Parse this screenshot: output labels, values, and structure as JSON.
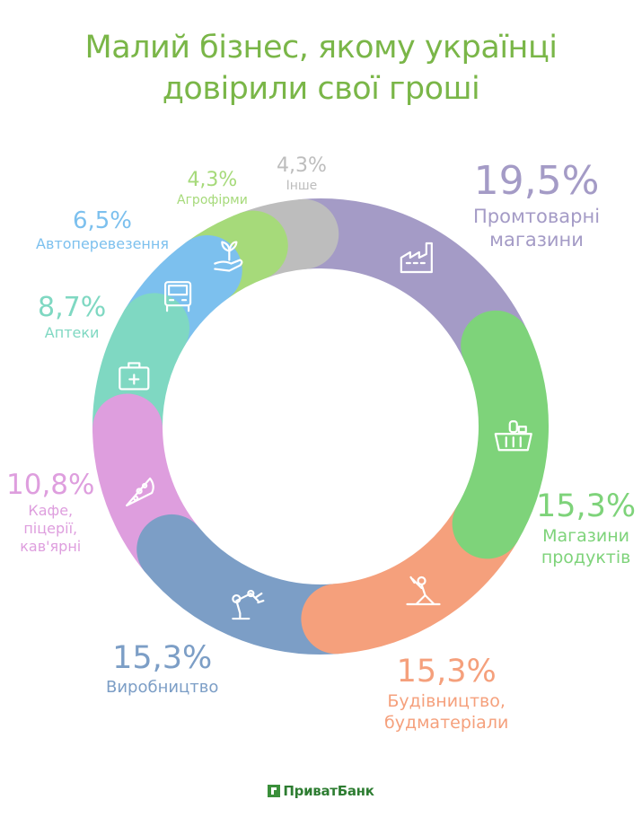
{
  "title": {
    "line1": "Малий бізнес, якому українці",
    "line2": "довірили свої гроші"
  },
  "logo_text": "ПриватБанк",
  "chart_data": {
    "type": "pie",
    "subtype": "donut",
    "unit": "%",
    "slices": [
      {
        "label": "Промтоварні магазини",
        "label_lines": [
          "Промтоварні",
          "магазини"
        ],
        "value": 19.5,
        "value_text": "19,5%",
        "color": "#a49bc6",
        "icon": "factory-icon"
      },
      {
        "label": "Магазини продуктів",
        "label_lines": [
          "Магазини",
          "продуктів"
        ],
        "value": 15.3,
        "value_text": "15,3%",
        "color": "#7ed37a",
        "icon": "grocery-basket-icon"
      },
      {
        "label": "Будівництво, будматеріали",
        "label_lines": [
          "Будівництво,",
          "будматеріали"
        ],
        "value": 15.3,
        "value_text": "15,3%",
        "color": "#f5a07c",
        "icon": "construction-worker-icon"
      },
      {
        "label": "Виробництво",
        "label_lines": [
          "Виробництво"
        ],
        "value": 15.3,
        "value_text": "15,3%",
        "color": "#7c9ec6",
        "icon": "robot-arm-icon"
      },
      {
        "label": "Кафе, піцерії, кав'ярні",
        "label_lines": [
          "Кафе,",
          "піцерії,",
          "кав'ярні"
        ],
        "value": 10.8,
        "value_text": "10,8%",
        "color": "#de9ede",
        "icon": "pizza-slice-icon"
      },
      {
        "label": "Аптеки",
        "label_lines": [
          "Аптеки"
        ],
        "value": 8.7,
        "value_text": "8,7%",
        "color": "#7fd8c2",
        "icon": "first-aid-kit-icon"
      },
      {
        "label": "Автоперевезення",
        "label_lines": [
          "Автоперевезення"
        ],
        "value": 6.5,
        "value_text": "6,5%",
        "color": "#7cc0ee",
        "icon": "truck-icon"
      },
      {
        "label": "Агрофірми",
        "label_lines": [
          "Агрофірми"
        ],
        "value": 4.3,
        "value_text": "4,3%",
        "color": "#a6da7a",
        "icon": "plant-in-hand-icon"
      },
      {
        "label": "Інше",
        "label_lines": [
          "Інше"
        ],
        "value": 4.3,
        "value_text": "4,3%",
        "color": "#bdbdbd",
        "icon": ""
      }
    ]
  }
}
